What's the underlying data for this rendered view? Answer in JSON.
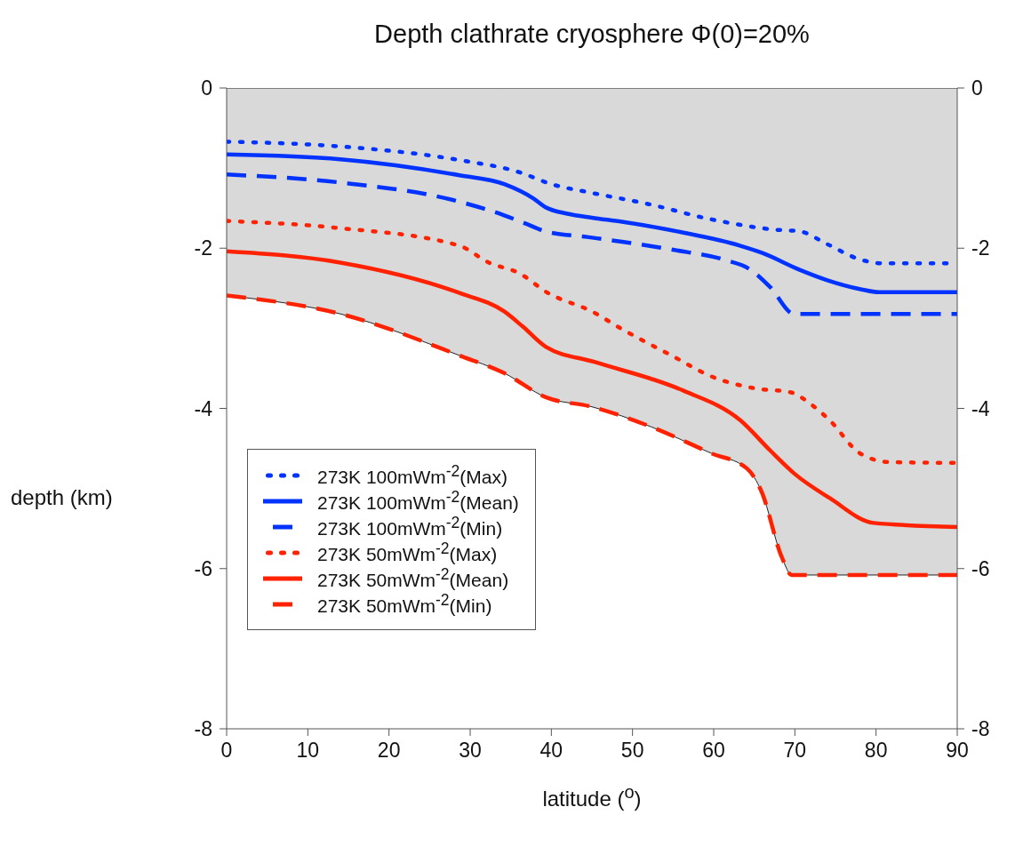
{
  "chart_data": {
    "type": "line",
    "title": "Depth clathrate cryosphere Φ(0)=20%",
    "xlabel": "latitude ($^{o}$)",
    "ylabel": "depth (km)",
    "xlim": [
      0,
      90
    ],
    "xticks": [
      0,
      10,
      20,
      30,
      40,
      50,
      60,
      70,
      80,
      90
    ],
    "ylim": [
      -8,
      0
    ],
    "yticks": [
      0,
      -2,
      -4,
      -6,
      -8
    ],
    "y2lim": [
      -8,
      0
    ],
    "y2ticks": [
      0,
      -2,
      -4,
      -6,
      -8
    ],
    "grid": false,
    "legend": "bottom left",
    "series": [
      {
        "name": "273K 100mWm$^{-2}$(Max)",
        "color": "#0033ff",
        "line_style": "dotted",
        "x": [
          0,
          14,
          28.7,
          36,
          40,
          45,
          52,
          59.7,
          67.7,
          70.6,
          74,
          78,
          81,
          90
        ],
        "values": [
          -0.67,
          -0.73,
          -0.9,
          -1.05,
          -1.2,
          -1.31,
          -1.45,
          -1.64,
          -1.77,
          -1.79,
          -1.95,
          -2.14,
          -2.19,
          -2.19
        ]
      },
      {
        "name": "273K 100mWm$^{-2}$(Mean)",
        "color": "#0033ff",
        "line_style": "solid",
        "x": [
          0,
          14,
          28.7,
          34.2,
          37.8,
          39.3,
          42,
          45,
          48.7,
          56,
          63.3,
          66,
          70.6,
          74,
          78,
          80.4,
          90
        ],
        "values": [
          -0.83,
          -0.89,
          -1.09,
          -1.2,
          -1.38,
          -1.49,
          -1.57,
          -1.62,
          -1.67,
          -1.8,
          -1.97,
          -2.06,
          -2.27,
          -2.4,
          -2.51,
          -2.55,
          -2.55
        ]
      },
      {
        "name": "273K 100mWm$^{-2}$(Min)",
        "color": "#0033ff",
        "line_style": "dashed",
        "x": [
          0,
          14,
          28.7,
          34.2,
          37,
          39.3,
          44.4,
          48.7,
          55,
          61.5,
          64.4,
          67,
          69.9,
          90
        ],
        "values": [
          -1.08,
          -1.18,
          -1.42,
          -1.59,
          -1.7,
          -1.79,
          -1.86,
          -1.92,
          -2.02,
          -2.15,
          -2.26,
          -2.49,
          -2.82,
          -2.82
        ]
      },
      {
        "name": "273K 50mWm$^{-2}$(Max)",
        "color": "#ff2200",
        "line_style": "dotted",
        "x": [
          0,
          14,
          28.7,
          32.3,
          36,
          39.6,
          45,
          48.7,
          55,
          59.7,
          65.1,
          69.5,
          72,
          74.3,
          78,
          81.6,
          90
        ],
        "values": [
          -1.66,
          -1.75,
          -1.97,
          -2.18,
          -2.31,
          -2.56,
          -2.79,
          -3.01,
          -3.35,
          -3.6,
          -3.75,
          -3.8,
          -3.95,
          -4.15,
          -4.56,
          -4.67,
          -4.68
        ]
      },
      {
        "name": "273K 50mWm$^{-2}$(Mean)",
        "color": "#ff2200",
        "line_style": "solid",
        "x": [
          0,
          14,
          28.7,
          34.2,
          36.5,
          39.3,
          45.3,
          56.3,
          63.3,
          67,
          70,
          74.3,
          79.7,
          90
        ],
        "values": [
          -2.04,
          -2.18,
          -2.56,
          -2.79,
          -2.98,
          -3.23,
          -3.42,
          -3.78,
          -4.15,
          -4.53,
          -4.82,
          -5.12,
          -5.43,
          -5.48
        ]
      },
      {
        "name": "273K 50mWm$^{-2}$(Min)",
        "color": "#ff2200",
        "line_style": "dashed",
        "x": [
          0,
          14,
          28.7,
          34.2,
          39.3,
          45,
          52.3,
          59.7,
          64.1,
          65.9,
          68.4,
          69.6,
          90
        ],
        "values": [
          -2.59,
          -2.82,
          -3.34,
          -3.56,
          -3.86,
          -3.98,
          -4.23,
          -4.56,
          -4.75,
          -5.04,
          -5.86,
          -6.08,
          -6.08
        ],
        "lower": [
          -2.59,
          -2.82,
          -3.34,
          -3.56,
          -3.86,
          -3.98,
          -4.23,
          -4.56,
          -4.75,
          -5.04,
          -5.86,
          -6.08,
          -6.08
        ],
        "upper": [
          0,
          0,
          0,
          0,
          0,
          0,
          0,
          0,
          0,
          0,
          0,
          0,
          0
        ]
      }
    ]
  }
}
